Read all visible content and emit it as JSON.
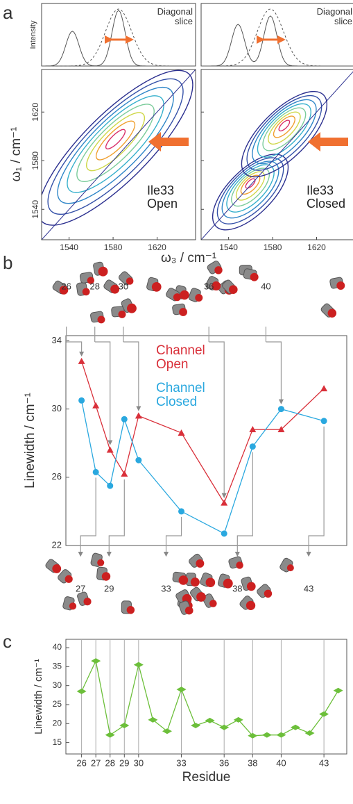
{
  "panel_labels": [
    "a",
    "b",
    "c"
  ],
  "structures": {
    "top": [
      26,
      28,
      30,
      36,
      40
    ],
    "bottom": [
      27,
      29,
      33,
      38,
      43
    ]
  },
  "chart_data": [
    {
      "type": "contour",
      "inset_ylabel": "Intensity",
      "inset_title": "Diagonal slice",
      "xlabel": "ω₃ / cm⁻¹",
      "ylabel": "ω₁ / cm⁻¹",
      "xlim": [
        1515,
        1655
      ],
      "ylim": [
        1515,
        1655
      ],
      "xticks": [
        1540,
        1580,
        1620
      ],
      "yticks": [
        1540,
        1580,
        1620
      ],
      "spectra": [
        {
          "label": "Ile33 Open"
        },
        {
          "label": "Ile33 Closed"
        }
      ]
    },
    {
      "type": "line",
      "ylabel": "Linewidth / cm⁻¹",
      "x": [
        26,
        27,
        28,
        29,
        30,
        33,
        36,
        38,
        40,
        43
      ],
      "xlim": [
        24.9,
        44.6
      ],
      "ylim": [
        22,
        34.3
      ],
      "yticks": [
        22,
        26,
        30,
        34
      ],
      "series": [
        {
          "name": "Channel Open",
          "color": "#d9303a",
          "marker": "triangle",
          "values": [
            32.8,
            30.2,
            27.6,
            26.2,
            29.6,
            28.6,
            24.5,
            28.8,
            28.8,
            31.2
          ]
        },
        {
          "name": "Channel Closed",
          "color": "#2aa8df",
          "marker": "circle",
          "values": [
            30.5,
            26.3,
            25.5,
            29.4,
            27.0,
            24.0,
            22.7,
            27.8,
            30.0,
            29.3
          ]
        }
      ]
    },
    {
      "type": "line",
      "xlabel": "Residue",
      "ylabel": "Linewidth / cm⁻¹",
      "x": [
        26,
        27,
        28,
        29,
        30,
        31,
        32,
        33,
        34,
        35,
        36,
        37,
        38,
        39,
        40,
        41,
        42,
        43,
        44
      ],
      "xlim": [
        24.9,
        44.6
      ],
      "ylim": [
        12,
        42.2
      ],
      "xticks": [
        26,
        27,
        28,
        29,
        30,
        33,
        36,
        38,
        40,
        43
      ],
      "yticks": [
        15,
        20,
        25,
        30,
        35,
        40
      ],
      "grid": true,
      "series": [
        {
          "color": "#6cbf3a",
          "marker": "diamond",
          "values": [
            28.5,
            36.5,
            17,
            19.5,
            35.5,
            21,
            18,
            29,
            19.5,
            20.8,
            19,
            21,
            16.8,
            17,
            17,
            19,
            17.5,
            22.5,
            28.7
          ]
        }
      ]
    }
  ]
}
